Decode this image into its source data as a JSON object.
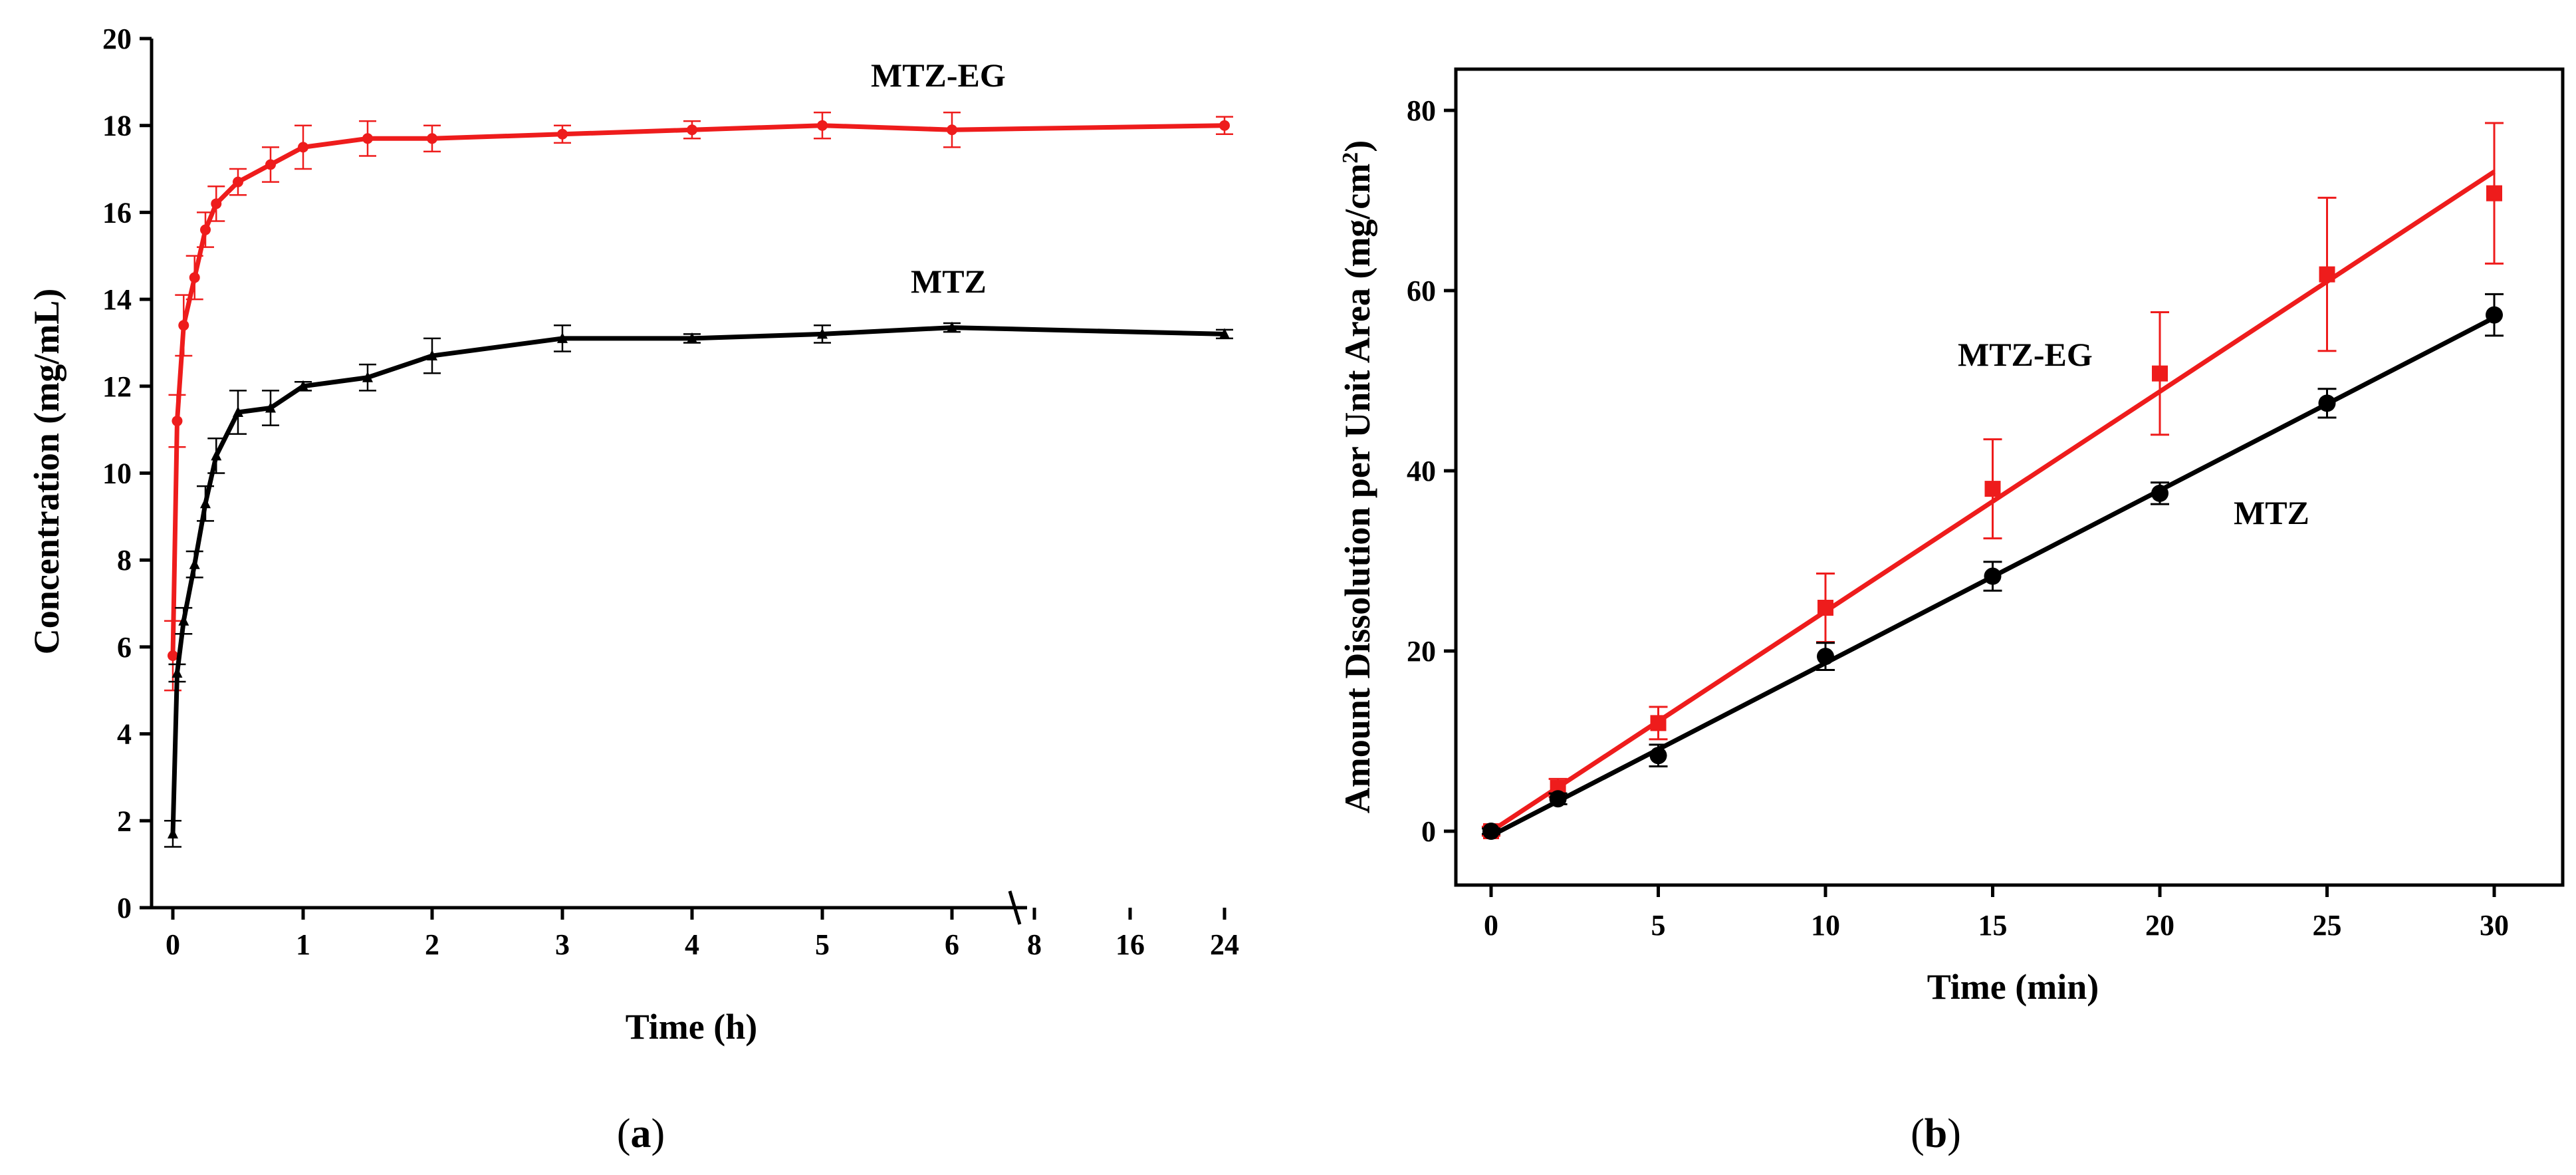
{
  "chart_data": [
    {
      "type": "line",
      "panel_label_prefix": "(",
      "panel_label_letter": "a",
      "panel_label_suffix": ")",
      "xlabel": "Time (h)",
      "ylabel": "Concentration (mg/mL)",
      "ylim": [
        0,
        20
      ],
      "yticks": [
        0,
        2,
        4,
        6,
        8,
        10,
        12,
        14,
        16,
        18,
        20
      ],
      "xticks": [
        "0",
        "1",
        "2",
        "3",
        "4",
        "5",
        "6",
        "8",
        "16",
        "24"
      ],
      "axis_break": "between 6 and 8",
      "series": [
        {
          "name": "MTZ-EG",
          "color": "#ee1c1c",
          "marker": "circle",
          "x": [
            0,
            0.033,
            0.083,
            0.167,
            0.25,
            0.333,
            0.5,
            0.75,
            1,
            1.5,
            2,
            3,
            4,
            5,
            6,
            24
          ],
          "y": [
            5.8,
            11.2,
            13.4,
            14.5,
            15.6,
            16.2,
            16.7,
            17.1,
            17.5,
            17.7,
            17.7,
            17.8,
            17.9,
            18.0,
            17.9,
            18.0
          ],
          "err": [
            0.8,
            0.6,
            0.7,
            0.5,
            0.4,
            0.4,
            0.3,
            0.4,
            0.5,
            0.4,
            0.3,
            0.2,
            0.2,
            0.3,
            0.4,
            0.2
          ]
        },
        {
          "name": "MTZ",
          "color": "#000000",
          "marker": "triangle",
          "x": [
            0,
            0.033,
            0.083,
            0.167,
            0.25,
            0.333,
            0.5,
            0.75,
            1,
            1.5,
            2,
            3,
            4,
            5,
            6,
            24
          ],
          "y": [
            1.7,
            5.4,
            6.6,
            7.9,
            9.3,
            10.4,
            11.4,
            11.5,
            12.0,
            12.2,
            12.7,
            13.1,
            13.1,
            13.2,
            13.35,
            13.2
          ],
          "err": [
            0.3,
            0.2,
            0.3,
            0.3,
            0.4,
            0.4,
            0.5,
            0.4,
            0.1,
            0.3,
            0.4,
            0.3,
            0.1,
            0.2,
            0.1,
            0.1
          ]
        }
      ]
    },
    {
      "type": "line",
      "panel_label_prefix": "(",
      "panel_label_letter": "b",
      "panel_label_suffix": ")",
      "xlabel": "Time (min)",
      "ylabel_main": "Amount Dissolution per Unit Area (mg/cm",
      "ylabel_sup": "2",
      "ylabel_end": ")",
      "xlim": [
        -1,
        32
      ],
      "ylim": [
        -6,
        85
      ],
      "xticks": [
        0,
        5,
        10,
        15,
        20,
        25,
        30
      ],
      "yticks": [
        0,
        20,
        40,
        60,
        80
      ],
      "series": [
        {
          "name": "MTZ-EG",
          "color": "#ee1c1c",
          "marker": "square",
          "x": [
            0,
            2,
            5,
            10,
            15,
            20,
            25,
            30
          ],
          "y": [
            0,
            4.8,
            12.0,
            24.8,
            38.0,
            50.8,
            61.8,
            70.8
          ],
          "err": [
            0.5,
            1.0,
            1.8,
            3.8,
            5.5,
            6.8,
            8.5,
            7.8
          ],
          "fit": [
            [
              0,
              0.0
            ],
            [
              30,
              73.2
            ]
          ]
        },
        {
          "name": "MTZ",
          "color": "#000000",
          "marker": "circle",
          "x": [
            0,
            2,
            5,
            10,
            15,
            20,
            25,
            30
          ],
          "y": [
            0,
            3.6,
            8.4,
            19.4,
            28.3,
            37.5,
            47.5,
            57.3
          ],
          "err": [
            0.3,
            0.6,
            1.2,
            1.5,
            1.6,
            1.2,
            1.6,
            2.3
          ],
          "fit": [
            [
              0,
              -0.5
            ],
            [
              30,
              57.0
            ]
          ]
        }
      ]
    }
  ]
}
